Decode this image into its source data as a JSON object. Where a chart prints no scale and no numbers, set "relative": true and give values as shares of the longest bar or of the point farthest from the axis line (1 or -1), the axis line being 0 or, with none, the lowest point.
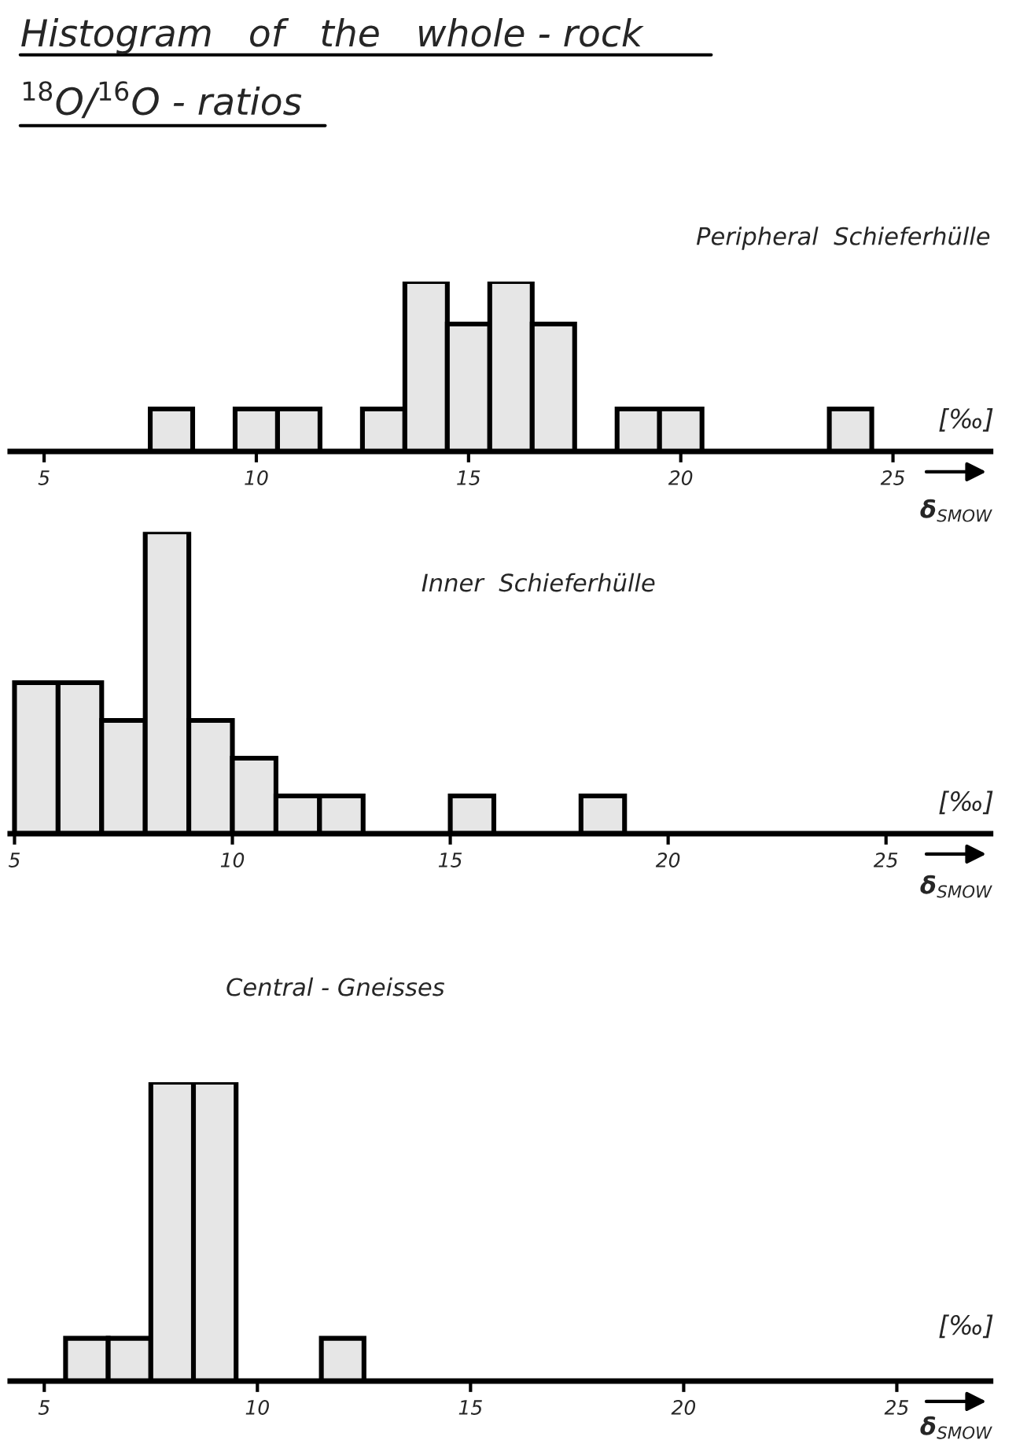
{
  "chart_data": [
    {
      "type": "bar",
      "title": "Histogram   of   the   whole - rock",
      "subtitle": "$^{18}$O/$^{16}$O - ratios",
      "annotations": [
        "Peripheral  Schieferhülle",
        "[‰]"
      ],
      "xlabel": "δ$_{SMOW}$",
      "relative": true,
      "color": "#e6e6e6",
      "x": [
        8,
        10,
        11,
        13,
        14,
        15,
        16,
        17,
        19,
        20,
        24
      ],
      "values": [
        0.25,
        0.25,
        0.25,
        0.25,
        1,
        0.75,
        1,
        0.75,
        0.25,
        0.25,
        0.25
      ],
      "xlim": [
        4.2,
        27.3
      ],
      "xticks": [
        5,
        10,
        15,
        20,
        25
      ]
    },
    {
      "type": "bar",
      "annotations": [
        "Inner  Schieferhülle",
        "[‰]"
      ],
      "xlabel": "δ$_{SMOW}$",
      "relative": true,
      "color": "#e6e6e6",
      "x": [
        5.5,
        6.5,
        7.5,
        8.5,
        9.5,
        10.5,
        11.5,
        12.5,
        15.5,
        18.5
      ],
      "values": [
        0.5,
        0.5,
        0.375,
        1,
        0.375,
        0.25,
        0.125,
        0.125,
        0.125,
        0.125
      ],
      "xlim": [
        4.9,
        27.4
      ],
      "xticks": [
        5,
        10,
        15,
        20,
        25
      ]
    },
    {
      "type": "bar",
      "annotations": [
        "Central - Gneisses",
        "[‰]"
      ],
      "xlabel": "δ$_{SMOW}$",
      "relative": true,
      "color": "#e6e6e6",
      "x": [
        6,
        7,
        8,
        9,
        12
      ],
      "values": [
        0.143,
        0.143,
        1,
        1,
        0.143
      ],
      "xlim": [
        4.2,
        27.2
      ],
      "xticks": [
        5,
        10,
        15,
        20,
        25
      ]
    }
  ]
}
